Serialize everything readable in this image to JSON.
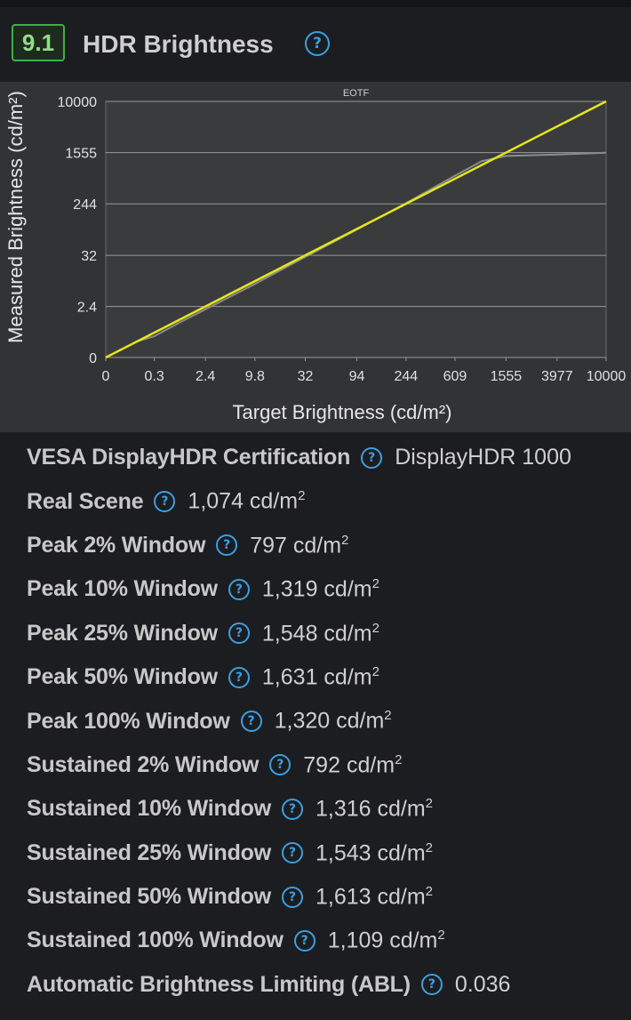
{
  "header": {
    "score": "9.1",
    "title": "HDR Brightness",
    "help_icon": "question-circle-icon"
  },
  "chart_data": {
    "type": "line",
    "title": "EOTF",
    "xlabel": "Target Brightness (cd/m²)",
    "ylabel": "Measured Brightness (cd/m²)",
    "x_ticks": [
      "0",
      "0.3",
      "2.4",
      "9.8",
      "32",
      "94",
      "244",
      "609",
      "1555",
      "3977",
      "10000"
    ],
    "y_ticks": [
      "0",
      "2.4",
      "32",
      "244",
      "1555",
      "10000"
    ],
    "grid": true,
    "x_scale": "pq",
    "series": [
      {
        "color": "#e6e61a",
        "points": [
          [
            0,
            0
          ],
          [
            10000,
            10000
          ]
        ]
      },
      {
        "color": "#8c8c8c",
        "points": [
          [
            0,
            0
          ],
          [
            0.1,
            0.1
          ],
          [
            0.3,
            0.2
          ],
          [
            1,
            0.8
          ],
          [
            2.4,
            2.0
          ],
          [
            9.8,
            8.5
          ],
          [
            32,
            30
          ],
          [
            94,
            92
          ],
          [
            244,
            250
          ],
          [
            609,
            680
          ],
          [
            1000,
            1150
          ],
          [
            1555,
            1380
          ],
          [
            3977,
            1450
          ],
          [
            10000,
            1550
          ]
        ]
      }
    ]
  },
  "specs": [
    {
      "label": "VESA DisplayHDR Certification",
      "value": "DisplayHDR 1000",
      "unit": "",
      "sup": ""
    },
    {
      "label": "Real Scene",
      "value": "1,074 cd/m",
      "unit": "",
      "sup": "2"
    },
    {
      "label": "Peak 2% Window",
      "value": "797 cd/m",
      "unit": "",
      "sup": "2"
    },
    {
      "label": "Peak 10% Window",
      "value": "1,319 cd/m",
      "unit": "",
      "sup": "2"
    },
    {
      "label": "Peak 25% Window",
      "value": "1,548 cd/m",
      "unit": "",
      "sup": "2"
    },
    {
      "label": "Peak 50% Window",
      "value": "1,631 cd/m",
      "unit": "",
      "sup": "2"
    },
    {
      "label": "Peak 100% Window",
      "value": "1,320 cd/m",
      "unit": "",
      "sup": "2"
    },
    {
      "label": "Sustained 2% Window",
      "value": "792 cd/m",
      "unit": "",
      "sup": "2"
    },
    {
      "label": "Sustained 10% Window",
      "value": "1,316 cd/m",
      "unit": "",
      "sup": "2"
    },
    {
      "label": "Sustained 25% Window",
      "value": "1,543 cd/m",
      "unit": "",
      "sup": "2"
    },
    {
      "label": "Sustained 50% Window",
      "value": "1,613 cd/m",
      "unit": "",
      "sup": "2"
    },
    {
      "label": "Sustained 100% Window",
      "value": "1,109 cd/m",
      "unit": "",
      "sup": "2"
    },
    {
      "label": "Automatic Brightness Limiting (ABL)",
      "value": "0.036",
      "unit": "",
      "sup": ""
    }
  ]
}
